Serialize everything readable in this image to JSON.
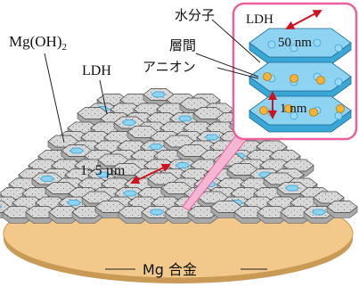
{
  "labels": {
    "mg_oh2": "Mg(OH)",
    "mg_oh2_sub": "2",
    "ldh_left": "LDH",
    "particle_size": "1~5 µm",
    "substrate": "Mg 合金",
    "water": "水分子",
    "ldh_inset": "LDH",
    "interlayer_line1": "層間",
    "interlayer_line2": "アニオン",
    "lateral_size": "50 nm",
    "interlayer_spacing": "1 nm"
  },
  "colors": {
    "substrate_fill": "#f2c98a",
    "substrate_edge": "#c99a55",
    "hex_top": "#d6d6d6",
    "hex_side": "#a9a9a9",
    "ldh_blue": "#8fd3f2",
    "ldh_blue_dark": "#3aa7d6",
    "inset_border": "#e9629d",
    "pointer_pink": "#f08bb8",
    "anion": "#f6b234",
    "water_mol": "#9dd8f5",
    "arrow_red": "#d0121e"
  }
}
